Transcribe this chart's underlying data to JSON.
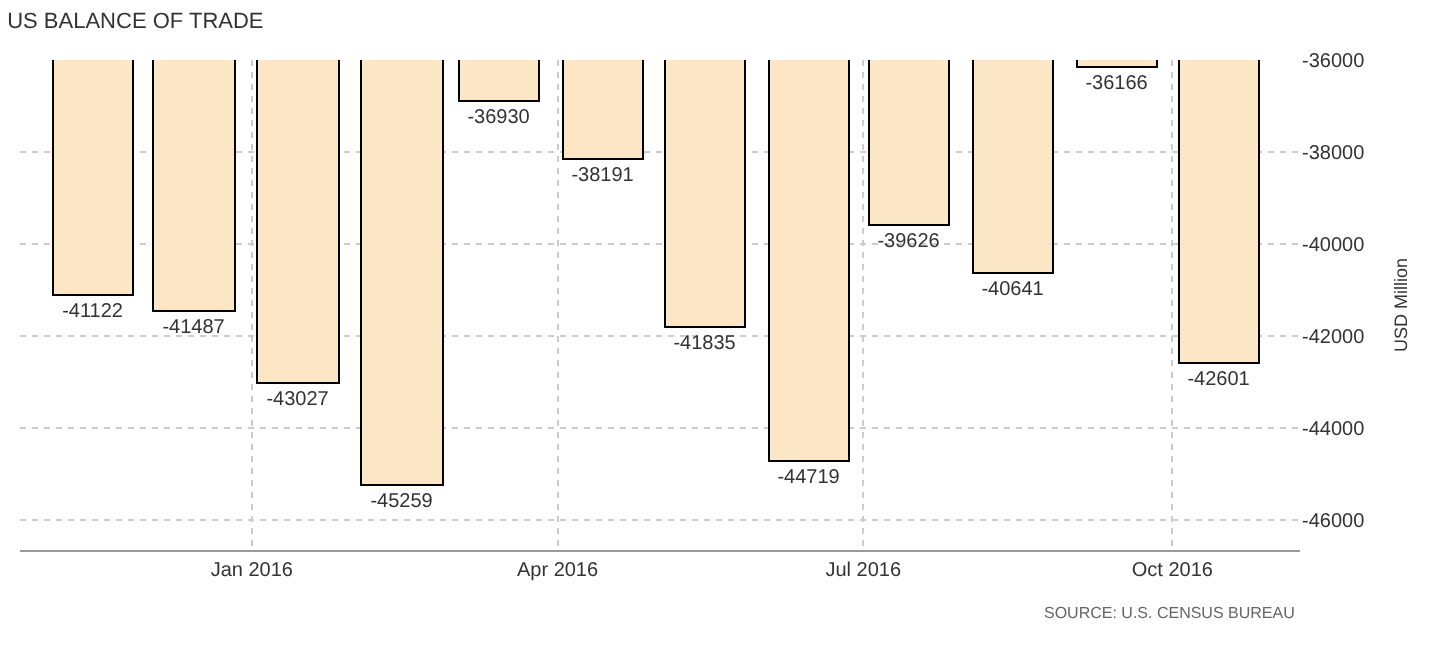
{
  "chart_data": {
    "type": "bar",
    "title": "US BALANCE OF TRADE",
    "ylabel": "USD Million",
    "x": [
      "2015-11-15",
      "2015-12-15",
      "2016-01-15",
      "2016-02-15",
      "2016-03-15",
      "2016-04-15",
      "2016-05-15",
      "2016-06-15",
      "2016-07-15",
      "2016-08-15",
      "2016-09-15",
      "2016-10-15"
    ],
    "values": [
      -41122,
      -41487,
      -43027,
      -45259,
      -36930,
      -38191,
      -41835,
      -44719,
      -39626,
      -40641,
      -36166,
      -42601
    ],
    "color": "#fbe6c6",
    "data_labels": true,
    "ylim": [
      -46650,
      -36000
    ],
    "yticks": [
      -46000,
      -44000,
      -42000,
      -40000,
      -38000,
      -36000
    ],
    "xlim": [
      "2015-10-24",
      "2016-11-08"
    ],
    "xticks": [
      {
        "value": "2016-01-01",
        "label": "Jan 2016"
      },
      {
        "value": "2016-04-01",
        "label": "Apr 2016"
      },
      {
        "value": "2016-07-01",
        "label": "Jul 2016"
      },
      {
        "value": "2016-10-01",
        "label": "Oct 2016"
      }
    ],
    "grid": true,
    "legend": false,
    "annotations": [
      "SOURCE: U.S. CENSUS BUREAU"
    ]
  }
}
